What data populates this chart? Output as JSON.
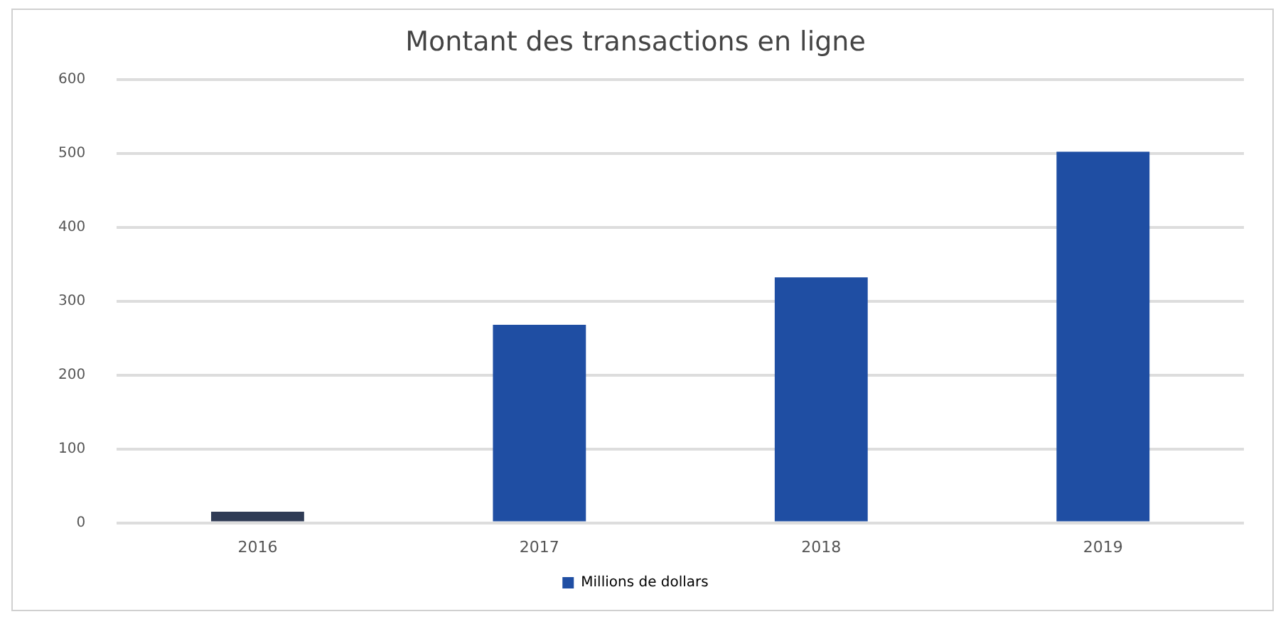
{
  "chart_data": {
    "type": "bar",
    "title": "Montant des transactions en ligne",
    "categories": [
      "2016",
      "2017",
      "2018",
      "2019"
    ],
    "series": [
      {
        "name": "Millions de dollars",
        "color": "#1f4ea3",
        "colors": [
          "#2f3b55",
          "#1f4ea3",
          "#1f4ea3",
          "#1f4ea3"
        ],
        "values": [
          15,
          268,
          332,
          502
        ]
      }
    ],
    "ylim": [
      0,
      600
    ],
    "yticks": [
      0,
      100,
      200,
      300,
      400,
      500,
      600
    ],
    "grid": "y",
    "legend": "bottom"
  }
}
